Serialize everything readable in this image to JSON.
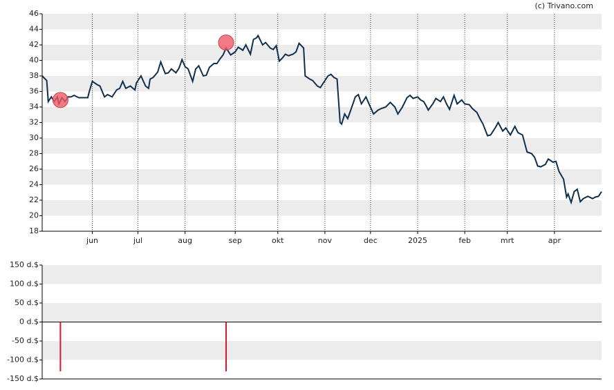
{
  "chart_data": [
    {
      "type": "line",
      "credit": "(c) Trivano.com",
      "color": "#0d2f4f",
      "x": [
        0,
        3,
        4,
        6,
        8,
        10,
        11,
        13,
        15,
        17,
        19,
        21,
        24,
        27,
        30,
        31,
        33,
        36,
        38,
        41,
        43,
        46,
        49,
        51,
        53,
        55,
        58,
        61,
        62,
        65,
        68,
        70,
        71,
        73,
        76,
        78,
        81,
        83,
        85,
        88,
        90,
        92,
        94,
        96,
        99,
        101,
        103,
        106,
        108,
        110,
        113,
        115,
        117,
        119,
        121,
        124,
        127,
        129,
        132,
        134,
        137,
        139,
        141,
        142,
        145,
        147,
        150,
        152,
        154,
        156,
        158,
        160,
        162,
        165,
        167,
        169,
        172,
        173,
        176,
        178,
        181,
        183,
        185,
        188,
        190,
        192,
        194,
        196,
        197,
        199,
        201,
        203,
        206,
        208,
        210,
        212,
        213,
        215,
        218,
        221,
        223,
        226,
        229,
        232,
        234,
        237,
        240,
        242,
        244,
        247,
        249,
        251,
        253,
        254,
        257,
        259,
        262,
        264,
        266,
        268,
        271,
        273,
        276,
        278,
        281,
        283,
        286,
        288,
        290,
        293,
        295,
        298,
        300,
        303,
        305,
        308,
        311,
        313,
        316,
        319,
        322,
        324,
        326,
        328,
        331,
        333,
        336,
        338,
        340,
        343,
        345,
        346,
        348,
        350,
        352,
        354,
        356,
        359,
        362,
        364,
        366,
        368
      ],
      "values": [
        38.0,
        37.4,
        34.7,
        35.3,
        34.7,
        35.3,
        34.4,
        35.2,
        34.7,
        35.3,
        35.3,
        35.5,
        35.2,
        35.2,
        35.2,
        36.0,
        37.3,
        36.9,
        36.7,
        35.3,
        35.6,
        35.3,
        36.2,
        36.4,
        37.3,
        36.4,
        36.7,
        36.2,
        37.1,
        38.0,
        36.7,
        36.4,
        37.6,
        37.8,
        38.5,
        39.8,
        38.3,
        38.4,
        38.9,
        38.4,
        39.0,
        40.1,
        39.2,
        38.9,
        37.3,
        38.9,
        39.3,
        38.0,
        38.1,
        39.1,
        39.6,
        39.6,
        40.2,
        40.7,
        41.6,
        40.7,
        41.1,
        41.7,
        41.3,
        42.0,
        40.8,
        42.7,
        42.9,
        43.2,
        42.0,
        42.3,
        41.6,
        41.4,
        41.9,
        39.9,
        40.3,
        40.8,
        40.6,
        40.8,
        41.1,
        42.2,
        41.6,
        38.0,
        37.6,
        37.4,
        36.7,
        36.5,
        37.1,
        38.0,
        38.2,
        37.8,
        37.6,
        32.0,
        31.8,
        33.1,
        32.5,
        33.6,
        35.3,
        35.6,
        34.4,
        35.0,
        35.3,
        34.4,
        33.1,
        33.6,
        33.8,
        34.0,
        34.6,
        34.0,
        33.1,
        34.0,
        35.2,
        35.5,
        35.1,
        35.3,
        34.9,
        34.7,
        34.0,
        33.6,
        34.4,
        35.1,
        34.7,
        35.3,
        34.4,
        33.7,
        35.5,
        34.4,
        34.9,
        34.4,
        34.3,
        33.8,
        33.3,
        32.5,
        31.8,
        30.3,
        30.4,
        31.3,
        32.0,
        30.9,
        31.3,
        30.4,
        31.5,
        30.7,
        30.4,
        28.2,
        28.0,
        27.5,
        26.4,
        26.3,
        26.6,
        27.3,
        26.9,
        27.0,
        25.7,
        24.7,
        22.4,
        22.8,
        21.7,
        23.1,
        23.4,
        21.8,
        22.2,
        22.5,
        22.2,
        22.4,
        22.5,
        23.1
      ],
      "markers": {
        "x": [
          12,
          121
        ],
        "values": [
          34.9,
          42.3
        ],
        "color": "#f05a64"
      },
      "xlim": [
        0,
        368
      ],
      "xticks": [
        {
          "value": 33,
          "label": "jun"
        },
        {
          "value": 63,
          "label": "jul"
        },
        {
          "value": 94,
          "label": "aug"
        },
        {
          "value": 127,
          "label": "sep"
        },
        {
          "value": 155,
          "label": "okt"
        },
        {
          "value": 186,
          "label": "nov"
        },
        {
          "value": 216,
          "label": "dec"
        },
        {
          "value": 247,
          "label": "2025"
        },
        {
          "value": 278,
          "label": "feb"
        },
        {
          "value": 306,
          "label": "mrt"
        },
        {
          "value": 337,
          "label": "apr"
        }
      ],
      "ylim": [
        18,
        46
      ],
      "yticks": [
        18,
        20,
        22,
        24,
        26,
        28,
        30,
        32,
        34,
        36,
        38,
        40,
        42,
        44,
        46
      ],
      "grid": true,
      "xgrid": true
    },
    {
      "type": "bar",
      "color": "#e0142c",
      "x": [
        12,
        121
      ],
      "values": [
        -130,
        -130
      ],
      "xlim": [
        0,
        368
      ],
      "ylim": [
        -150,
        150
      ],
      "yticks": [
        {
          "value": -150,
          "label": "-150 d.$"
        },
        {
          "value": -100,
          "label": "-100 d.$"
        },
        {
          "value": -50,
          "label": "-50 d.$"
        },
        {
          "value": 0,
          "label": "0 d.$"
        },
        {
          "value": 50,
          "label": "50 d.$"
        },
        {
          "value": 100,
          "label": "100 d.$"
        },
        {
          "value": 150,
          "label": "150 d.$"
        }
      ],
      "grid": true,
      "xgrid": false
    }
  ]
}
